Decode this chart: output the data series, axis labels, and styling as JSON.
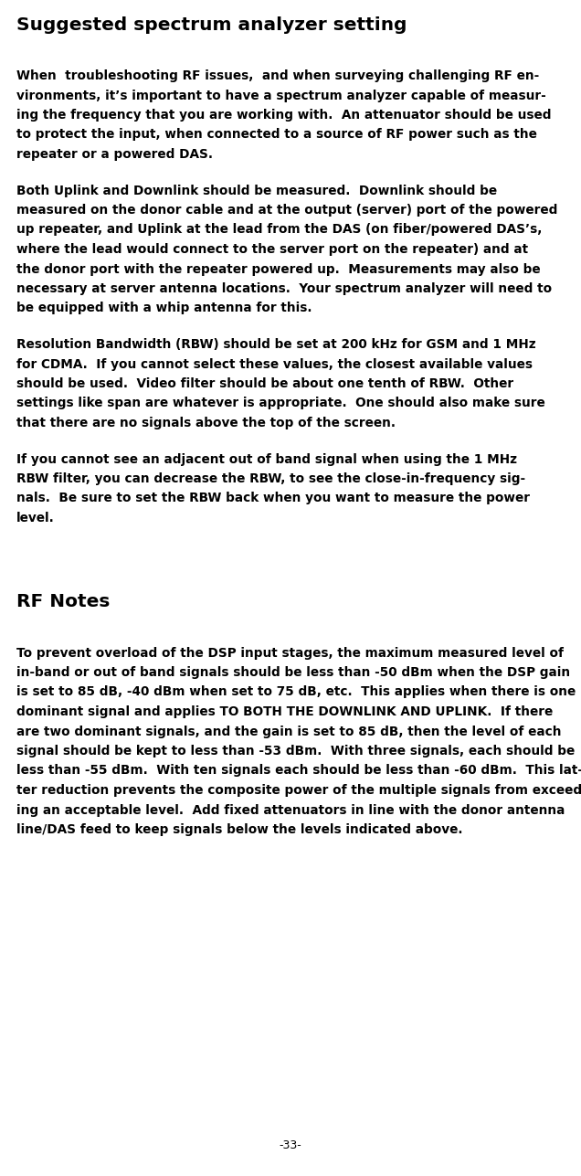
{
  "title": "Suggested spectrum analyzer setting",
  "page_number": "-33-",
  "background_color": "#ffffff",
  "text_color": "#000000",
  "title_fontsize": 14.5,
  "body_fontsize": 9.8,
  "section2_title": "RF Notes",
  "paragraphs_lines": [
    [
      "When  troubleshooting RF issues,  and when surveying challenging RF en-",
      "vironments, it’s important to have a spectrum analyzer capable of measur-",
      "ing the frequency that you are working with.  An attenuator should be used",
      "to protect the input, when connected to a source of RF power such as the",
      "repeater or a powered DAS."
    ],
    [
      "Both Uplink and Downlink should be measured.  Downlink should be",
      "measured on the donor cable and at the output (server) port of the powered",
      "up repeater, and Uplink at the lead from the DAS (on fiber/powered DAS’s,",
      "where the lead would connect to the server port on the repeater) and at",
      "the donor port with the repeater powered up.  Measurements may also be",
      "necessary at server antenna locations.  Your spectrum analyzer will need to",
      "be equipped with a whip antenna for this."
    ],
    [
      "Resolution Bandwidth (RBW) should be set at 200 kHz for GSM and 1 MHz",
      "for CDMA.  If you cannot select these values, the closest available values",
      "should be used.  Video filter should be about one tenth of RBW.  Other",
      "settings like span are whatever is appropriate.  One should also make sure",
      "that there are no signals above the top of the screen."
    ],
    [
      "If you cannot see an adjacent out of band signal when using the 1 MHz",
      "RBW filter, you can decrease the RBW, to see the close-in-frequency sig-",
      "nals.  Be sure to set the RBW back when you want to measure the power",
      "level."
    ]
  ],
  "rf_notes_lines": [
    [
      "To prevent overload of the DSP input stages, the maximum measured level of",
      "in-band or out of band signals should be less than -50 dBm when the DSP gain",
      "is set to 85 dB, -40 dBm when set to 75 dB, etc.  This applies when there is one",
      "dominant signal and applies TO BOTH THE DOWNLINK AND UPLINK.  If there",
      "are two dominant signals, and the gain is set to 85 dB, then the level of each",
      "signal should be kept to less than -53 dBm.  With three signals, each should be",
      "less than -55 dBm.  With ten signals each should be less than -60 dBm.  This lat-",
      "ter reduction prevents the composite power of the multiple signals from exceed-",
      "ing an acceptable level.  Add fixed attenuators in line with the donor antenna",
      "line/DAS feed to keep signals below the levels indicated above."
    ]
  ]
}
